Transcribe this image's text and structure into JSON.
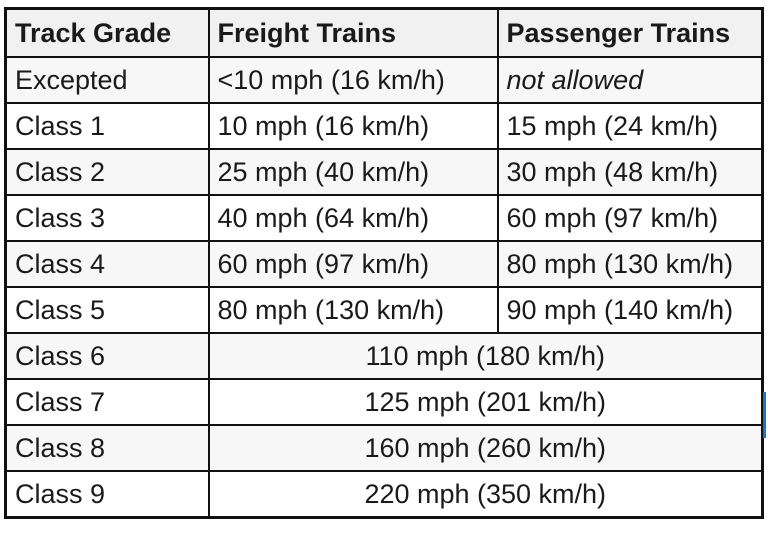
{
  "table": {
    "headers": [
      "Track Grade",
      "Freight Trains",
      "Passenger Trains"
    ],
    "split_rows": [
      {
        "grade": "Excepted",
        "freight": "<10 mph (16 km/h)",
        "passenger": "not allowed"
      },
      {
        "grade": "Class 1",
        "freight": "10 mph (16 km/h)",
        "passenger": "15 mph (24 km/h)"
      },
      {
        "grade": "Class 2",
        "freight": "25 mph (40 km/h)",
        "passenger": "30 mph (48 km/h)"
      },
      {
        "grade": "Class 3",
        "freight": "40 mph (64 km/h)",
        "passenger": "60 mph (97 km/h)"
      },
      {
        "grade": "Class 4",
        "freight": "60 mph (97 km/h)",
        "passenger": "80 mph (130 km/h)"
      },
      {
        "grade": "Class 5",
        "freight": "80 mph (130 km/h)",
        "passenger": "90 mph (140 km/h)"
      }
    ],
    "merged_rows": [
      {
        "grade": "Class 6",
        "speed": "110 mph (180 km/h)"
      },
      {
        "grade": "Class 7",
        "speed": "125 mph (201 km/h)"
      },
      {
        "grade": "Class 8",
        "speed": "160 mph (260 km/h)"
      },
      {
        "grade": "Class 9",
        "speed": "220 mph (350 km/h)"
      }
    ]
  }
}
